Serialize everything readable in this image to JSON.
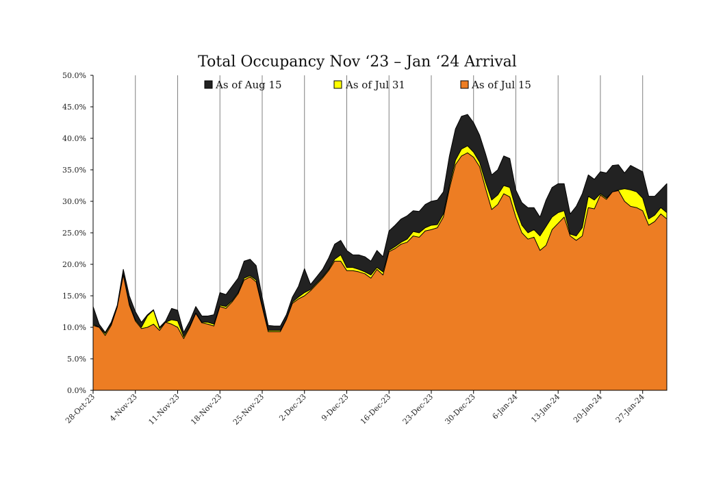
{
  "chart_data": {
    "type": "area",
    "title": "Total Occupancy Nov ‘23 – Jan ‘24 Arrival",
    "xlabel": "",
    "ylabel": "",
    "ylim": [
      0,
      0.5
    ],
    "y_ticks": [
      0,
      0.05,
      0.1,
      0.15,
      0.2,
      0.25,
      0.3,
      0.35,
      0.4,
      0.45,
      0.5
    ],
    "y_tick_labels": [
      "0.0%",
      "5.0%",
      "10.0%",
      "15.0%",
      "20.0%",
      "25.0%",
      "30.0%",
      "35.0%",
      "40.0%",
      "45.0%",
      "50.0%"
    ],
    "x_tick_labels": [
      "28-Oct-23",
      "4-Nov-23",
      "11-Nov-23",
      "18-Nov-23",
      "25-Nov-23",
      "2-Dec-23",
      "9-Dec-23",
      "16-Dec-23",
      "23-Dec-23",
      "30-Dec-23",
      "6-Jan-24",
      "13-Jan-24",
      "20-Jan-24",
      "27-Jan-24"
    ],
    "x_tick_indices": [
      0,
      7,
      14,
      21,
      28,
      35,
      42,
      49,
      56,
      63,
      70,
      77,
      84,
      91
    ],
    "vertical_grid_indices": [
      7,
      14,
      21,
      28,
      35,
      42,
      49,
      56,
      63,
      70,
      77,
      84,
      91
    ],
    "grid": "vertical lines at weekly ticks",
    "legend_position": "top",
    "series": [
      {
        "name": "As of Aug 15",
        "color": "#222222",
        "values": [
          0.133,
          0.105,
          0.092,
          0.108,
          0.135,
          0.192,
          0.15,
          0.125,
          0.108,
          0.12,
          0.128,
          0.1,
          0.11,
          0.13,
          0.127,
          0.092,
          0.11,
          0.133,
          0.118,
          0.118,
          0.12,
          0.155,
          0.152,
          0.165,
          0.178,
          0.205,
          0.208,
          0.198,
          0.148,
          0.103,
          0.102,
          0.102,
          0.12,
          0.148,
          0.165,
          0.193,
          0.168,
          0.18,
          0.192,
          0.21,
          0.232,
          0.238,
          0.222,
          0.215,
          0.215,
          0.212,
          0.205,
          0.222,
          0.212,
          0.253,
          0.262,
          0.272,
          0.277,
          0.285,
          0.284,
          0.295,
          0.3,
          0.302,
          0.315,
          0.372,
          0.415,
          0.435,
          0.438,
          0.425,
          0.405,
          0.375,
          0.342,
          0.35,
          0.372,
          0.368,
          0.318,
          0.298,
          0.29,
          0.29,
          0.275,
          0.302,
          0.322,
          0.328,
          0.328,
          0.28,
          0.292,
          0.312,
          0.342,
          0.335,
          0.347,
          0.345,
          0.357,
          0.358,
          0.345,
          0.357,
          0.352,
          0.347,
          0.308,
          0.308,
          0.318,
          0.328
        ]
      },
      {
        "name": "As of Jul 31",
        "color": "#ffff00",
        "values": [
          0.105,
          0.1,
          0.09,
          0.105,
          0.133,
          0.185,
          0.138,
          0.112,
          0.1,
          0.118,
          0.127,
          0.098,
          0.108,
          0.112,
          0.11,
          0.085,
          0.102,
          0.123,
          0.108,
          0.108,
          0.105,
          0.135,
          0.133,
          0.142,
          0.155,
          0.178,
          0.182,
          0.175,
          0.135,
          0.095,
          0.095,
          0.095,
          0.113,
          0.14,
          0.148,
          0.155,
          0.16,
          0.17,
          0.18,
          0.192,
          0.208,
          0.215,
          0.195,
          0.195,
          0.192,
          0.188,
          0.183,
          0.195,
          0.188,
          0.222,
          0.228,
          0.235,
          0.24,
          0.252,
          0.25,
          0.258,
          0.262,
          0.263,
          0.28,
          0.325,
          0.365,
          0.383,
          0.388,
          0.378,
          0.362,
          0.33,
          0.302,
          0.31,
          0.325,
          0.322,
          0.288,
          0.262,
          0.25,
          0.255,
          0.245,
          0.26,
          0.275,
          0.282,
          0.285,
          0.248,
          0.245,
          0.258,
          0.308,
          0.302,
          0.312,
          0.305,
          0.315,
          0.318,
          0.32,
          0.318,
          0.315,
          0.305,
          0.272,
          0.278,
          0.29,
          0.282
        ]
      },
      {
        "name": "As of Jul 15",
        "color": "#ed7d23",
        "values": [
          0.103,
          0.1,
          0.087,
          0.103,
          0.132,
          0.183,
          0.135,
          0.11,
          0.098,
          0.1,
          0.105,
          0.095,
          0.108,
          0.105,
          0.1,
          0.082,
          0.1,
          0.122,
          0.107,
          0.105,
          0.102,
          0.133,
          0.13,
          0.14,
          0.153,
          0.175,
          0.18,
          0.172,
          0.132,
          0.093,
          0.093,
          0.093,
          0.112,
          0.138,
          0.145,
          0.15,
          0.158,
          0.168,
          0.178,
          0.19,
          0.205,
          0.205,
          0.19,
          0.19,
          0.188,
          0.185,
          0.178,
          0.192,
          0.183,
          0.22,
          0.225,
          0.232,
          0.235,
          0.245,
          0.243,
          0.253,
          0.255,
          0.258,
          0.275,
          0.32,
          0.358,
          0.372,
          0.377,
          0.37,
          0.355,
          0.32,
          0.287,
          0.295,
          0.312,
          0.307,
          0.275,
          0.25,
          0.24,
          0.243,
          0.222,
          0.23,
          0.255,
          0.265,
          0.275,
          0.245,
          0.238,
          0.245,
          0.29,
          0.288,
          0.31,
          0.303,
          0.315,
          0.317,
          0.3,
          0.292,
          0.29,
          0.285,
          0.262,
          0.268,
          0.28,
          0.272
        ]
      }
    ]
  }
}
